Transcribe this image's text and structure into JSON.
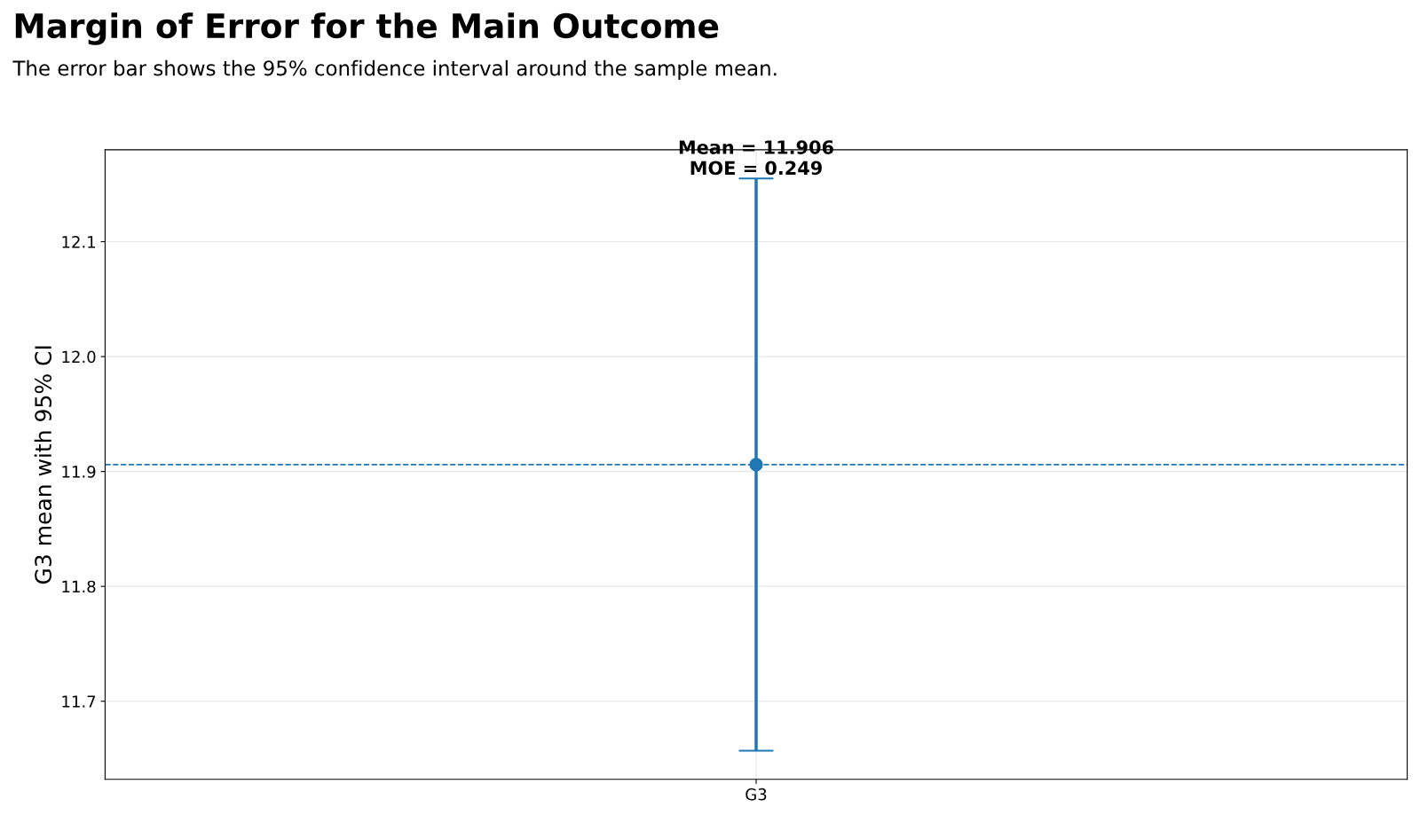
{
  "chart_data": {
    "type": "scatter",
    "title": "Margin of Error for the Main Outcome",
    "subtitle": "The error bar shows the 95% confidence interval around the sample mean.",
    "ylabel": "G3 mean with 95% CI",
    "categories": [
      "G3"
    ],
    "series": [
      {
        "color": "#1f77b4",
        "values": [
          11.906
        ],
        "errors": [
          0.249
        ]
      }
    ],
    "ylim": [
      11.632,
      12.18
    ],
    "yticks": [
      {
        "value": 11.7,
        "label": "11.7"
      },
      {
        "value": 11.8,
        "label": "11.8"
      },
      {
        "value": 11.9,
        "label": "11.9"
      },
      {
        "value": 12.0,
        "label": "12.0"
      },
      {
        "value": 12.1,
        "label": "12.1"
      }
    ],
    "ref_lines": [
      {
        "axis": "y",
        "value": 11.906,
        "label": null,
        "color": "#1f77b4",
        "line_style": "dashed"
      }
    ],
    "annotations": [
      {
        "text": "Mean = 11.906\nMOE = 0.249",
        "x": "G3",
        "y": 12.155
      }
    ],
    "grid": true,
    "marker": "circle"
  }
}
